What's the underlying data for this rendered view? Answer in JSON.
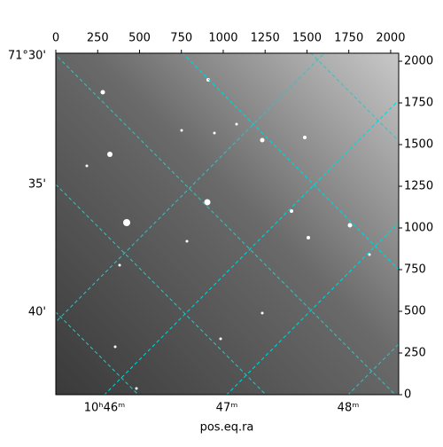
{
  "chart_data": {
    "type": "image",
    "xlim": [
      0,
      2048
    ],
    "ylim": [
      0,
      2048
    ],
    "xticks": [
      0,
      250,
      500,
      750,
      1000,
      1250,
      1500,
      1750,
      2000
    ],
    "yticks": [
      0,
      250,
      500,
      750,
      1000,
      1250,
      1500,
      1750,
      2000
    ],
    "xlabel": "pos.eq.ra",
    "world_x_ticks": [
      "10ʰ46ᵐ",
      "47ᵐ",
      "48ᵐ"
    ],
    "world_y_ticks": [
      "71°30'",
      "35'",
      "40'"
    ],
    "grid": true,
    "grid_color": "#00d8d8"
  }
}
